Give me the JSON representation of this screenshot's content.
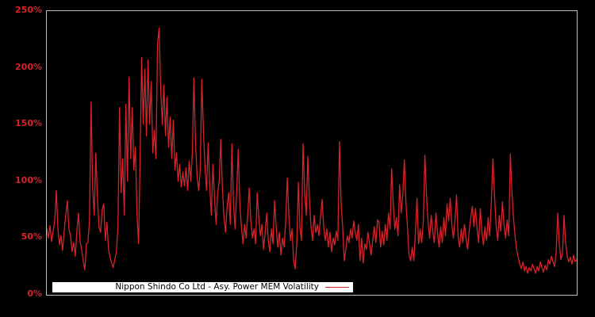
{
  "window": {
    "background": "#000000"
  },
  "legend": {
    "label": "Nippon Shindo Co Ltd - Asy. Power MEM Volatility"
  },
  "colors": {
    "background": "#000000",
    "plot_border": "#bebebe",
    "line": "#d8232a",
    "axis_label": "#d8232a",
    "legend_bg": "#ffffff",
    "legend_text": "#000000"
  },
  "chart_data": {
    "type": "line",
    "title": "",
    "xlabel": "",
    "ylabel": "",
    "ylim": [
      0,
      250
    ],
    "grid": false,
    "x_axis": {
      "tick_labels_visible": false,
      "description": "time (unlabeled daily observations)"
    },
    "yticks": [
      {
        "value": 0,
        "label": "0%"
      },
      {
        "value": 50,
        "label": "50%"
      },
      {
        "value": 100,
        "label": "100%"
      },
      {
        "value": 150,
        "label": "150%"
      },
      {
        "value": 200,
        "label": "200%"
      },
      {
        "value": 250,
        "label": "250%"
      }
    ],
    "legend_position": "inside-bottom-left",
    "series": [
      {
        "name": "Nippon Shindo Co Ltd - Asy. Power MEM Volatility",
        "color": "#d8232a",
        "unit": "percent",
        "values": [
          58,
          50,
          61,
          47,
          56,
          65,
          92,
          58,
          44,
          52,
          39,
          56,
          70,
          83,
          58,
          52,
          38,
          46,
          34,
          56,
          72,
          47,
          40,
          30,
          22,
          45,
          46,
          65,
          170,
          95,
          70,
          125,
          85,
          60,
          55,
          75,
          80,
          48,
          64,
          40,
          33,
          28,
          24,
          31,
          38,
          60,
          165,
          90,
          120,
          70,
          168,
          100,
          192,
          120,
          165,
          110,
          130,
          70,
          45,
          120,
          209,
          150,
          199,
          140,
          207,
          150,
          188,
          125,
          145,
          120,
          222,
          235,
          180,
          150,
          185,
          140,
          174,
          130,
          157,
          120,
          154,
          110,
          125,
          100,
          115,
          95,
          108,
          96,
          112,
          92,
          118,
          100,
          126,
          191,
          135,
          105,
          92,
          110,
          190,
          145,
          112,
          92,
          134,
          95,
          70,
          115,
          85,
          62,
          90,
          100,
          137,
          95,
          68,
          55,
          78,
          90,
          62,
          133,
          80,
          58,
          90,
          128,
          80,
          60,
          45,
          62,
          50,
          70,
          94,
          65,
          50,
          58,
          45,
          90,
          68,
          52,
          62,
          40,
          55,
          72,
          48,
          38,
          58,
          45,
          83,
          60,
          42,
          55,
          35,
          50,
          42,
          65,
          103,
          70,
          48,
          58,
          30,
          23,
          45,
          99,
          60,
          48,
          133,
          90,
          70,
          122,
          85,
          60,
          48,
          70,
          55,
          62,
          52,
          68,
          84,
          60,
          48,
          58,
          42,
          55,
          38,
          50,
          44,
          56,
          48,
          135,
          82,
          60,
          30,
          40,
          52,
          46,
          58,
          50,
          65,
          55,
          48,
          62,
          30,
          50,
          28,
          45,
          40,
          55,
          45,
          35,
          48,
          60,
          46,
          66,
          64,
          42,
          56,
          44,
          62,
          48,
          72,
          58,
          111,
          80,
          58,
          68,
          52,
          97,
          72,
          88,
          119,
          82,
          60,
          35,
          30,
          42,
          30,
          55,
          85,
          45,
          58,
          46,
          65,
          123,
          88,
          64,
          50,
          70,
          56,
          46,
          72,
          55,
          42,
          60,
          46,
          68,
          52,
          80,
          65,
          85,
          62,
          50,
          66,
          88,
          52,
          42,
          58,
          46,
          62,
          50,
          40,
          56,
          68,
          78,
          60,
          76,
          58,
          46,
          76,
          56,
          44,
          60,
          48,
          68,
          52,
          82,
          120,
          88,
          62,
          48,
          70,
          56,
          82,
          62,
          50,
          66,
          52,
          124,
          92,
          68,
          52,
          40,
          33,
          27,
          23,
          29,
          21,
          25,
          19,
          24,
          21,
          27,
          23,
          19,
          25,
          21,
          29,
          24,
          20,
          26,
          22,
          31,
          27,
          34,
          29,
          25,
          38,
          72,
          44,
          31,
          37,
          70,
          46,
          34,
          29,
          33,
          27,
          35,
          29,
          31
        ]
      }
    ]
  }
}
